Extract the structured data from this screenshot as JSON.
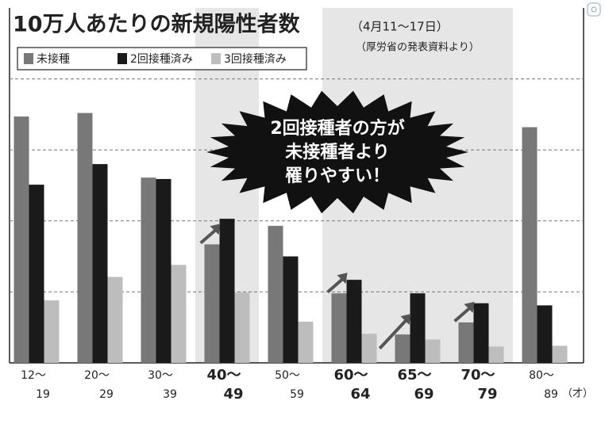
{
  "chart_data": {
    "type": "bar",
    "title": "10万人あたりの新規陽性者数",
    "subtitle": "（4月11〜17日）",
    "source": "（厚労省の発表資料より）",
    "annotation": [
      "2回接種者の方が",
      "未接種者より",
      "罹りやすい！"
    ],
    "x_unit": "（才）",
    "categories": [
      [
        "12〜",
        "19"
      ],
      [
        "20〜",
        "29"
      ],
      [
        "30〜",
        "39"
      ],
      [
        "40〜",
        "49"
      ],
      [
        "50〜",
        "59"
      ],
      [
        "60〜",
        "64"
      ],
      [
        "65〜",
        "69"
      ],
      [
        "70〜",
        "79"
      ],
      [
        "80〜",
        "89"
      ]
    ],
    "highlight": [
      false,
      false,
      false,
      true,
      false,
      true,
      true,
      true,
      false
    ],
    "series": [
      {
        "name": "未接種",
        "color": "#787878",
        "values": [
          3.47,
          3.52,
          2.61,
          1.67,
          1.93,
          0.98,
          0.4,
          0.57,
          3.32
        ]
      },
      {
        "name": "2回接種済み",
        "color": "#1a1a1a",
        "values": [
          2.51,
          2.8,
          2.59,
          2.03,
          1.5,
          1.17,
          0.98,
          0.84,
          0.81
        ]
      },
      {
        "name": "3回接種済み",
        "color": "#bdbdbd",
        "values": [
          0.88,
          1.21,
          1.38,
          0.99,
          0.58,
          0.41,
          0.33,
          0.23,
          0.24
        ]
      }
    ],
    "ylim": [
      0,
      5
    ],
    "yticks": [
      0,
      1,
      2,
      3,
      4
    ],
    "grid": true
  }
}
